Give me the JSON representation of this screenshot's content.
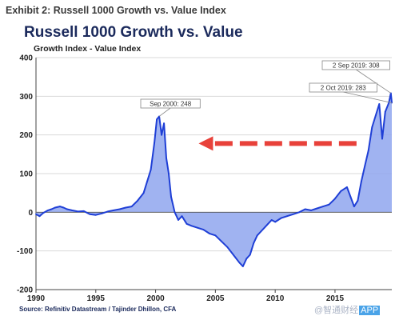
{
  "header": {
    "exhibit": "Exhibit 2: Russell 1000 Growth vs. Value Index"
  },
  "footer": {
    "source": "Source: Refinitiv Datastream / Tajinder Dhillon, CFA",
    "watermark_text": "@智通财经",
    "watermark_badge": "APP"
  },
  "colors": {
    "line": "#1f3fd6",
    "fill": "#8fa6ef",
    "arrow": "#e8413a",
    "title": "#1b2a5c",
    "grid": "#d9d9d9"
  },
  "chart_data": {
    "type": "area",
    "title": "Russell 1000 Growth vs. Value",
    "subtitle": "Growth Index - Value Index",
    "xlim": [
      1990,
      2019.75
    ],
    "ylim": [
      -200,
      400
    ],
    "xticks": [
      1990,
      1995,
      2000,
      2005,
      2010,
      2015
    ],
    "yticks": [
      -200,
      -100,
      0,
      100,
      200,
      300,
      400
    ],
    "grid": "horizontal",
    "series": [
      {
        "points": [
          [
            1990.0,
            -5
          ],
          [
            1990.3,
            -10
          ],
          [
            1990.6,
            -2
          ],
          [
            1991.0,
            5
          ],
          [
            1991.3,
            8
          ],
          [
            1991.6,
            12
          ],
          [
            1992.0,
            15
          ],
          [
            1992.3,
            12
          ],
          [
            1992.6,
            8
          ],
          [
            1993.0,
            5
          ],
          [
            1993.5,
            2
          ],
          [
            1994.0,
            3
          ],
          [
            1994.5,
            -5
          ],
          [
            1995.0,
            -7
          ],
          [
            1995.5,
            -3
          ],
          [
            1996.0,
            2
          ],
          [
            1996.5,
            5
          ],
          [
            1997.0,
            8
          ],
          [
            1997.5,
            12
          ],
          [
            1998.0,
            15
          ],
          [
            1998.5,
            30
          ],
          [
            1999.0,
            50
          ],
          [
            1999.3,
            80
          ],
          [
            1999.6,
            110
          ],
          [
            1999.9,
            180
          ],
          [
            2000.1,
            240
          ],
          [
            2000.3,
            248
          ],
          [
            2000.5,
            200
          ],
          [
            2000.7,
            230
          ],
          [
            2000.9,
            140
          ],
          [
            2001.1,
            100
          ],
          [
            2001.3,
            40
          ],
          [
            2001.6,
            0
          ],
          [
            2001.9,
            -20
          ],
          [
            2002.2,
            -10
          ],
          [
            2002.6,
            -30
          ],
          [
            2003.0,
            -35
          ],
          [
            2003.5,
            -40
          ],
          [
            2004.0,
            -45
          ],
          [
            2004.5,
            -55
          ],
          [
            2005.0,
            -60
          ],
          [
            2005.5,
            -75
          ],
          [
            2006.0,
            -90
          ],
          [
            2006.5,
            -110
          ],
          [
            2007.0,
            -130
          ],
          [
            2007.3,
            -140
          ],
          [
            2007.6,
            -120
          ],
          [
            2007.9,
            -110
          ],
          [
            2008.2,
            -80
          ],
          [
            2008.5,
            -60
          ],
          [
            2008.8,
            -50
          ],
          [
            2009.1,
            -40
          ],
          [
            2009.4,
            -30
          ],
          [
            2009.7,
            -20
          ],
          [
            2010.0,
            -25
          ],
          [
            2010.5,
            -15
          ],
          [
            2011.0,
            -10
          ],
          [
            2011.5,
            -5
          ],
          [
            2012.0,
            0
          ],
          [
            2012.5,
            8
          ],
          [
            2013.0,
            5
          ],
          [
            2013.5,
            10
          ],
          [
            2014.0,
            15
          ],
          [
            2014.5,
            20
          ],
          [
            2015.0,
            35
          ],
          [
            2015.5,
            55
          ],
          [
            2016.0,
            65
          ],
          [
            2016.3,
            40
          ],
          [
            2016.6,
            15
          ],
          [
            2016.9,
            30
          ],
          [
            2017.2,
            80
          ],
          [
            2017.5,
            120
          ],
          [
            2017.8,
            160
          ],
          [
            2018.1,
            220
          ],
          [
            2018.4,
            250
          ],
          [
            2018.7,
            280
          ],
          [
            2018.95,
            190
          ],
          [
            2019.2,
            260
          ],
          [
            2019.5,
            283
          ],
          [
            2019.67,
            308
          ],
          [
            2019.75,
            283
          ]
        ]
      }
    ],
    "annotations": [
      {
        "text": "Sep 2000: 248",
        "x": 2000.3,
        "y": 248
      },
      {
        "text": "2 Sep 2019: 308",
        "x": 2019.67,
        "y": 308
      },
      {
        "text": "2 Oct 2019: 283",
        "x": 2019.75,
        "y": 283
      }
    ],
    "arrow": {
      "from": [
        2016.8,
        240
      ],
      "to": [
        2003.6,
        240
      ],
      "style": "dashed",
      "direction": "left"
    }
  }
}
